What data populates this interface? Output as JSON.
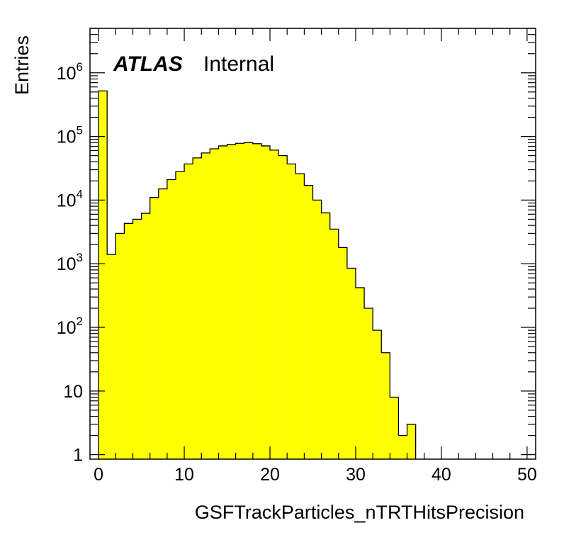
{
  "chart_data": {
    "type": "bar",
    "style": "histogram",
    "title": "",
    "xlabel": "GSFTrackParticles_nTRTHitsPrecision",
    "ylabel": "Entries",
    "xlim": [
      -1,
      51
    ],
    "ylim": [
      0.85,
      5000000
    ],
    "yscale": "log",
    "x_ticks": [
      0,
      10,
      20,
      30,
      40,
      50
    ],
    "x_tick_labels": [
      "0",
      "10",
      "20",
      "30",
      "40",
      "50"
    ],
    "y_tick_labels": [
      {
        "value": 1,
        "base": "1",
        "exp": ""
      },
      {
        "value": 10,
        "base": "10",
        "exp": ""
      },
      {
        "value": 100,
        "base": "10",
        "exp": "2"
      },
      {
        "value": 1000,
        "base": "10",
        "exp": "3"
      },
      {
        "value": 10000,
        "base": "10",
        "exp": "4"
      },
      {
        "value": 100000,
        "base": "10",
        "exp": "5"
      },
      {
        "value": 1000000,
        "base": "10",
        "exp": "6"
      }
    ],
    "bin_edges": [
      0,
      1,
      2,
      3,
      4,
      5,
      6,
      7,
      8,
      9,
      10,
      11,
      12,
      13,
      14,
      15,
      16,
      17,
      18,
      19,
      20,
      21,
      22,
      23,
      24,
      25,
      26,
      27,
      28,
      29,
      30,
      31,
      32,
      33,
      34,
      35,
      36,
      37
    ],
    "values": [
      520000,
      1400,
      3000,
      4300,
      5000,
      6200,
      11000,
      15000,
      21000,
      28000,
      37000,
      46000,
      55000,
      64000,
      71000,
      75000,
      78000,
      80000,
      77000,
      71000,
      61000,
      50000,
      37000,
      26000,
      17000,
      10000,
      6300,
      3500,
      1800,
      850,
      420,
      200,
      90,
      40,
      8,
      2,
      3
    ],
    "fill_color": "#ffff00",
    "line_color": "#000000",
    "grid": false,
    "legend": "none"
  },
  "annotation": {
    "experiment": "ATLAS",
    "status": "Internal"
  }
}
